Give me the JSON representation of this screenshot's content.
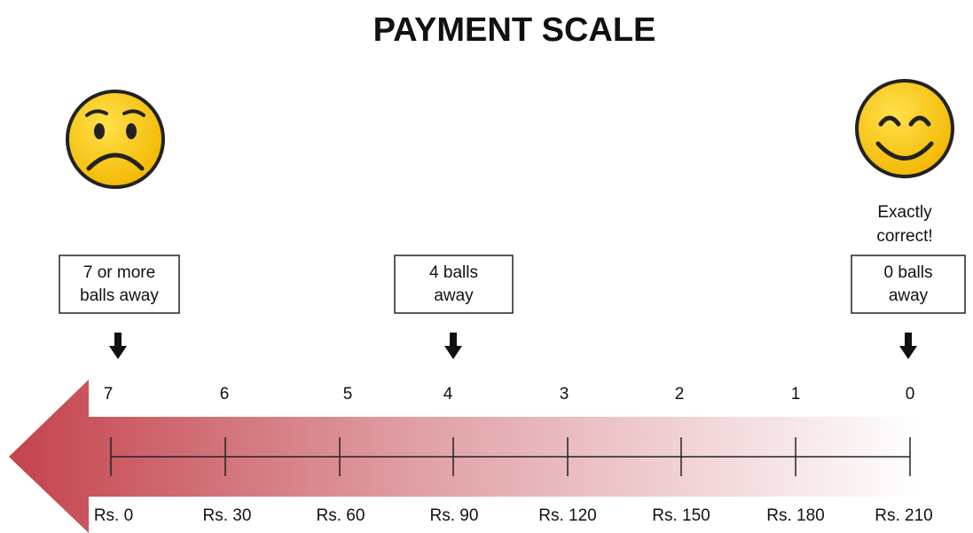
{
  "title": "PAYMENT SCALE",
  "boxes": [
    {
      "lines": [
        "7 or more",
        "balls away"
      ]
    },
    {
      "lines": [
        "4 balls",
        "away"
      ]
    },
    {
      "lines": [
        "0 balls",
        "away"
      ]
    }
  ],
  "caption": [
    "Exactly",
    "correct!"
  ],
  "scale": {
    "balls": [
      "7",
      "6",
      "5",
      "4",
      "3",
      "2",
      "1",
      "0"
    ],
    "payments": [
      "Rs. 0",
      "Rs. 30",
      "Rs. 60",
      "Rs. 90",
      "Rs. 120",
      "Rs. 150",
      "Rs. 180",
      "Rs. 210"
    ]
  }
}
